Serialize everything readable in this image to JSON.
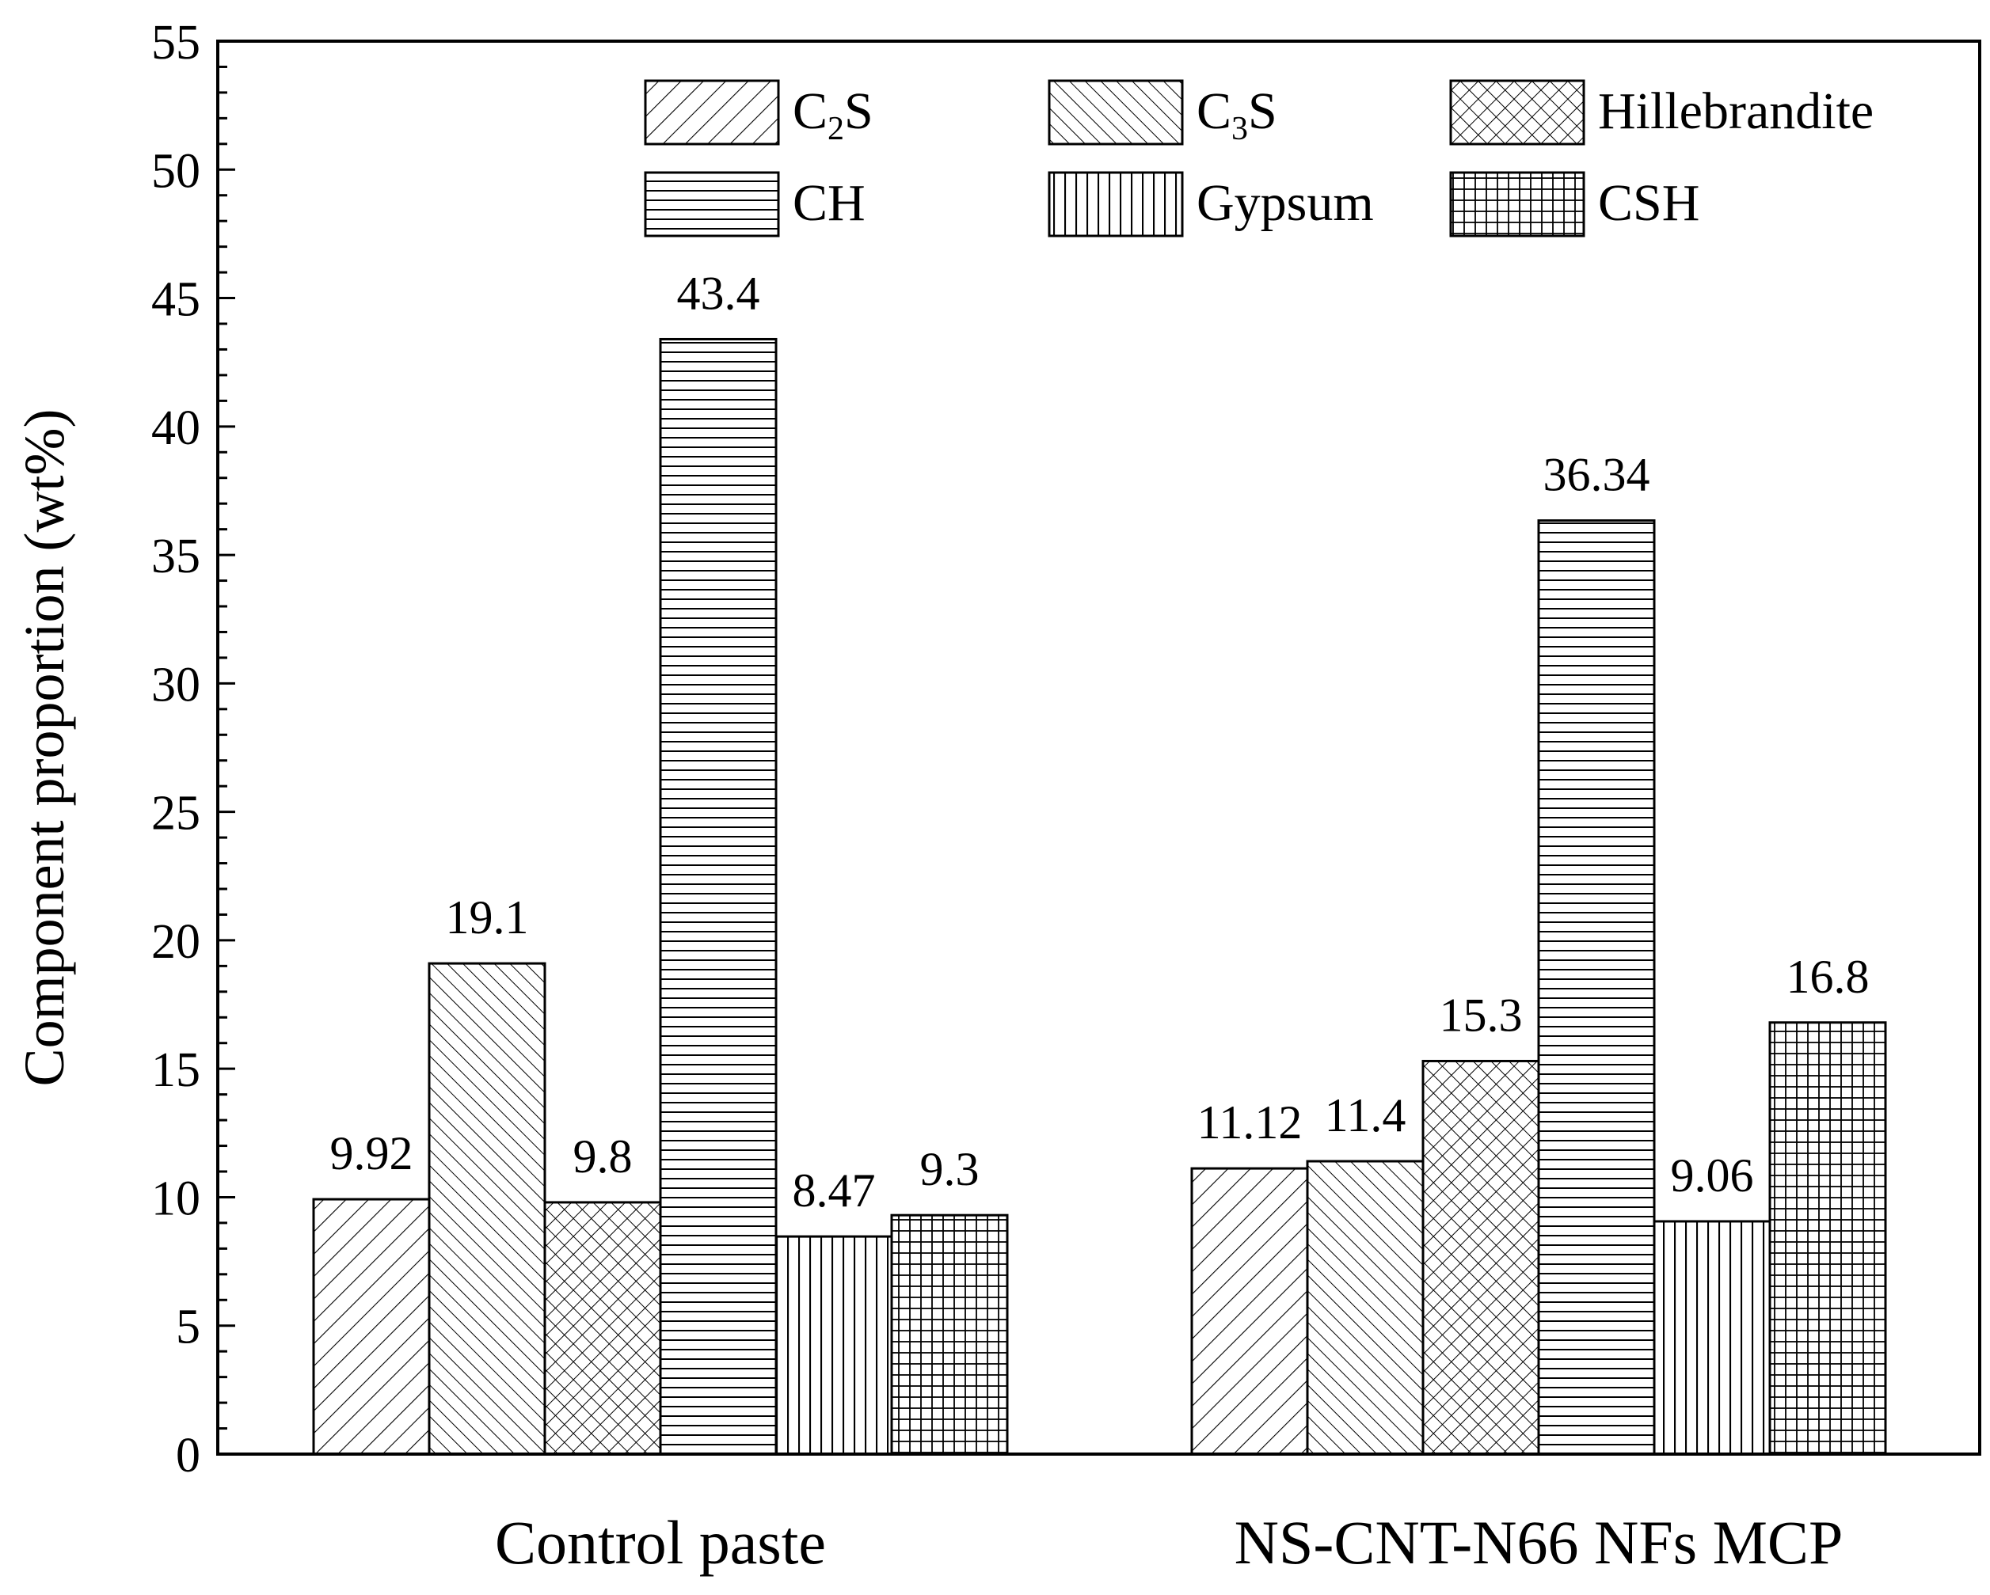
{
  "chart_data": {
    "type": "bar",
    "title": "",
    "xlabel": "",
    "ylabel": "Component proportion (wt%)",
    "ylim": [
      0,
      55
    ],
    "yticks": [
      "0",
      "5",
      "10",
      "15",
      "20",
      "25",
      "30",
      "35",
      "40",
      "45",
      "50",
      "55"
    ],
    "grid": false,
    "legend_position": "top-right",
    "categories": [
      "Control paste",
      "NS-CNT-N66 NFs MCP"
    ],
    "series": [
      {
        "name": "C2S",
        "name_main": "C",
        "name_sub": "2",
        "name_tail": "S",
        "pattern": "diag-right",
        "values": [
          9.92,
          11.12
        ],
        "labels": [
          "9.92",
          "11.12"
        ]
      },
      {
        "name": "C3S",
        "name_main": "C",
        "name_sub": "3",
        "name_tail": "S",
        "pattern": "diag-left",
        "values": [
          19.1,
          11.4
        ],
        "labels": [
          "19.1",
          "11.4"
        ]
      },
      {
        "name": "Hillebrandite",
        "name_main": "Hillebrandite",
        "name_sub": "",
        "name_tail": "",
        "pattern": "crosshatch",
        "values": [
          9.8,
          15.3
        ],
        "labels": [
          "9.8",
          "15.3"
        ]
      },
      {
        "name": "CH",
        "name_main": "CH",
        "name_sub": "",
        "name_tail": "",
        "pattern": "horizontal",
        "values": [
          43.4,
          36.34
        ],
        "labels": [
          "43.4",
          "36.34"
        ]
      },
      {
        "name": "Gypsum",
        "name_main": "Gypsum",
        "name_sub": "",
        "name_tail": "",
        "pattern": "vertical",
        "values": [
          8.47,
          9.06
        ],
        "labels": [
          "8.47",
          "9.06"
        ]
      },
      {
        "name": "CSH",
        "name_main": "CSH",
        "name_sub": "",
        "name_tail": "",
        "pattern": "grid",
        "values": [
          9.3,
          16.8
        ],
        "labels": [
          "9.3",
          "16.8"
        ]
      }
    ],
    "colors": {
      "ink": "#000000",
      "background": "#ffffff"
    }
  }
}
